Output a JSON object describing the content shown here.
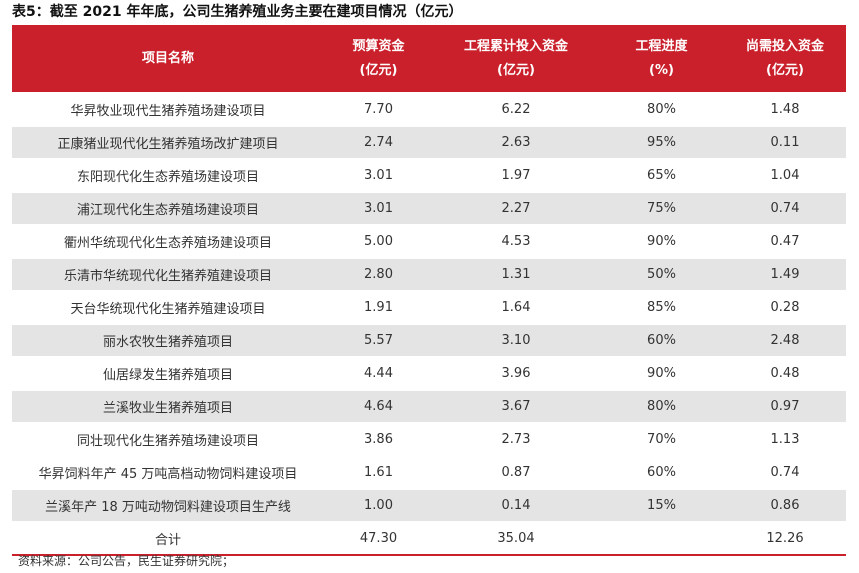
{
  "title": "表5：截至 2021 年年底，公司生猪养殖业务主要在建项目情况（亿元）",
  "headers": [
    {
      "line1": "项目名称",
      "line2": ""
    },
    {
      "line1": "预算资金",
      "line2": "(亿元)"
    },
    {
      "line1": "工程累计投入资金",
      "line2": "(亿元)"
    },
    {
      "line1": "工程进度",
      "line2": "(%)"
    },
    {
      "line1": "尚需投入资金",
      "line2": "(亿元)"
    }
  ],
  "rows": [
    {
      "name": "华昇牧业现代生猪养殖场建设项目",
      "budget": "7.70",
      "invested": "6.22",
      "progress": "80%",
      "remaining": "1.48"
    },
    {
      "name": "正康猪业现代化生猪养殖场改扩建项目",
      "budget": "2.74",
      "invested": "2.63",
      "progress": "95%",
      "remaining": "0.11"
    },
    {
      "name": "东阳现代化生态养殖场建设项目",
      "budget": "3.01",
      "invested": "1.97",
      "progress": "65%",
      "remaining": "1.04"
    },
    {
      "name": "浦江现代化生态养殖场建设项目",
      "budget": "3.01",
      "invested": "2.27",
      "progress": "75%",
      "remaining": "0.74"
    },
    {
      "name": "衢州华统现代化生态养殖场建设项目",
      "budget": "5.00",
      "invested": "4.53",
      "progress": "90%",
      "remaining": "0.47"
    },
    {
      "name": "乐清市华统现代化生猪养殖建设项目",
      "budget": "2.80",
      "invested": "1.31",
      "progress": "50%",
      "remaining": "1.49"
    },
    {
      "name": "天台华统现代化生猪养殖建设项目",
      "budget": "1.91",
      "invested": "1.64",
      "progress": "85%",
      "remaining": "0.28"
    },
    {
      "name": "丽水农牧生猪养殖项目",
      "budget": "5.57",
      "invested": "3.10",
      "progress": "60%",
      "remaining": "2.48"
    },
    {
      "name": "仙居绿发生猪养殖项目",
      "budget": "4.44",
      "invested": "3.96",
      "progress": "90%",
      "remaining": "0.48"
    },
    {
      "name": "兰溪牧业生猪养殖项目",
      "budget": "4.64",
      "invested": "3.67",
      "progress": "80%",
      "remaining": "0.97"
    },
    {
      "name": "同壮现代化生猪养殖场建设项目",
      "budget": "3.86",
      "invested": "2.73",
      "progress": "70%",
      "remaining": "1.13"
    },
    {
      "name": "华昇饲料年产 45 万吨高档动物饲料建设项目",
      "budget": "1.61",
      "invested": "0.87",
      "progress": "60%",
      "remaining": "0.74"
    },
    {
      "name": "兰溪年产 18 万吨动物饲料建设项目生产线",
      "budget": "1.00",
      "invested": "0.14",
      "progress": "15%",
      "remaining": "0.86"
    }
  ],
  "total": {
    "name": "合计",
    "budget": "47.30",
    "invested": "35.04",
    "progress": "",
    "remaining": "12.26"
  },
  "source": "资料来源：公司公告，民生证券研究院；",
  "colors": {
    "header_bg": "#c9202b",
    "alt_row_bg": "#e4e4e4",
    "text": "#333333"
  }
}
